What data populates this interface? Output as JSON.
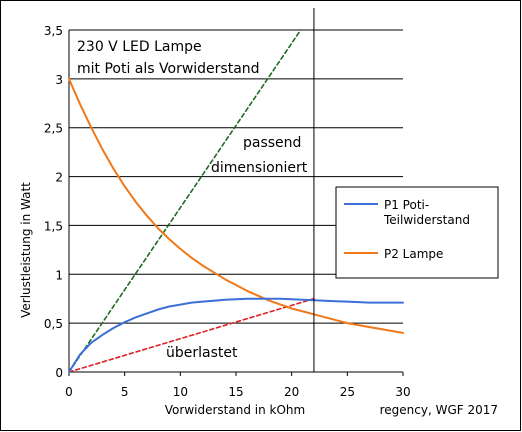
{
  "chart_data": {
    "type": "line",
    "title": "",
    "xlabel": "Vorwiderstand in kOhm",
    "ylabel": "Verlustleistung in Watt",
    "xlim": [
      0,
      30
    ],
    "ylim": [
      0,
      3.5
    ],
    "x_ticks": [
      "0",
      "5",
      "10",
      "15",
      "20",
      "25",
      "30"
    ],
    "y_ticks": [
      "0",
      "0,5",
      "1",
      "1,5",
      "2",
      "2,5",
      "3",
      "3,5"
    ],
    "grid": "horizontal",
    "legend_position": "right",
    "series": [
      {
        "name": "P1 Poti-Teilwiderstand",
        "legend_lines": [
          "P1 Poti-",
          "Teilwiderstand"
        ],
        "color": "#3c6fd8",
        "style": "solid",
        "x": [
          0,
          1,
          2,
          3,
          4,
          5,
          6,
          7,
          8,
          9,
          10,
          11,
          12,
          13,
          14,
          15,
          16,
          17,
          18,
          19,
          20,
          21,
          22,
          23,
          24,
          25,
          26,
          27,
          28,
          29,
          30
        ],
        "y": [
          0,
          0.18,
          0.3,
          0.38,
          0.45,
          0.51,
          0.56,
          0.6,
          0.64,
          0.67,
          0.69,
          0.71,
          0.72,
          0.73,
          0.74,
          0.745,
          0.75,
          0.75,
          0.75,
          0.75,
          0.745,
          0.74,
          0.735,
          0.73,
          0.725,
          0.72,
          0.715,
          0.71,
          0.71,
          0.71,
          0.71
        ]
      },
      {
        "name": "P2 Lampe",
        "legend_lines": [
          "P2 Lampe"
        ],
        "color": "#f07818",
        "style": "solid",
        "x": [
          0,
          1,
          2,
          3,
          4,
          5,
          6,
          7,
          8,
          9,
          10,
          11,
          12,
          13,
          14,
          15,
          16,
          17,
          18,
          19,
          20,
          21,
          22,
          23,
          24,
          25,
          26,
          27,
          28,
          29,
          30
        ],
        "y": [
          3.0,
          2.74,
          2.5,
          2.28,
          2.08,
          1.9,
          1.74,
          1.6,
          1.47,
          1.36,
          1.26,
          1.17,
          1.09,
          1.02,
          0.95,
          0.89,
          0.83,
          0.78,
          0.73,
          0.69,
          0.65,
          0.62,
          0.59,
          0.56,
          0.53,
          0.5,
          0.48,
          0.46,
          0.44,
          0.42,
          0.4
        ]
      },
      {
        "name": "passend dimensioniert",
        "color": "#1f6b1f",
        "style": "dashed",
        "x": [
          0,
          22
        ],
        "y": [
          0,
          3.7
        ]
      },
      {
        "name": "überlastet",
        "color": "#e02020",
        "style": "dashed",
        "x": [
          0,
          22
        ],
        "y": [
          0,
          0.75
        ]
      }
    ],
    "reference_line": {
      "x": 22,
      "color": "#000000"
    },
    "annotations": {
      "note_line1": "230 V LED Lampe",
      "note_line2": "mit Poti als Vorwiderstand",
      "passend_line1": "passend",
      "passend_line2": "dimensioniert",
      "ueberlastet": "überlastet",
      "credit": "regency, WGF 2017"
    }
  }
}
